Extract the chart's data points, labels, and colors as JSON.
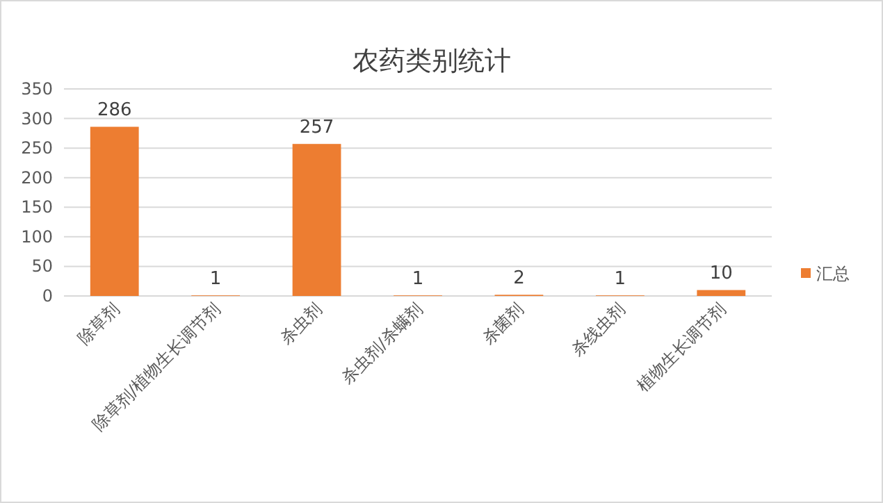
{
  "chart_data": {
    "type": "bar",
    "title": "农药类别统计",
    "categories": [
      "除草剂",
      "除草剂/植物生长调节剂",
      "杀虫剂",
      "杀虫剂/杀螨剂",
      "杀菌剂",
      "杀线虫剂",
      "植物生长调节剂"
    ],
    "series": [
      {
        "name": "汇总",
        "color": "#ed7d31",
        "values": [
          286,
          1,
          257,
          1,
          2,
          1,
          10
        ]
      }
    ],
    "ylim": [
      0,
      350
    ],
    "yticks": [
      0,
      50,
      100,
      150,
      200,
      250,
      300,
      350
    ],
    "grid": "y",
    "legend": "right",
    "data_labels": true
  }
}
